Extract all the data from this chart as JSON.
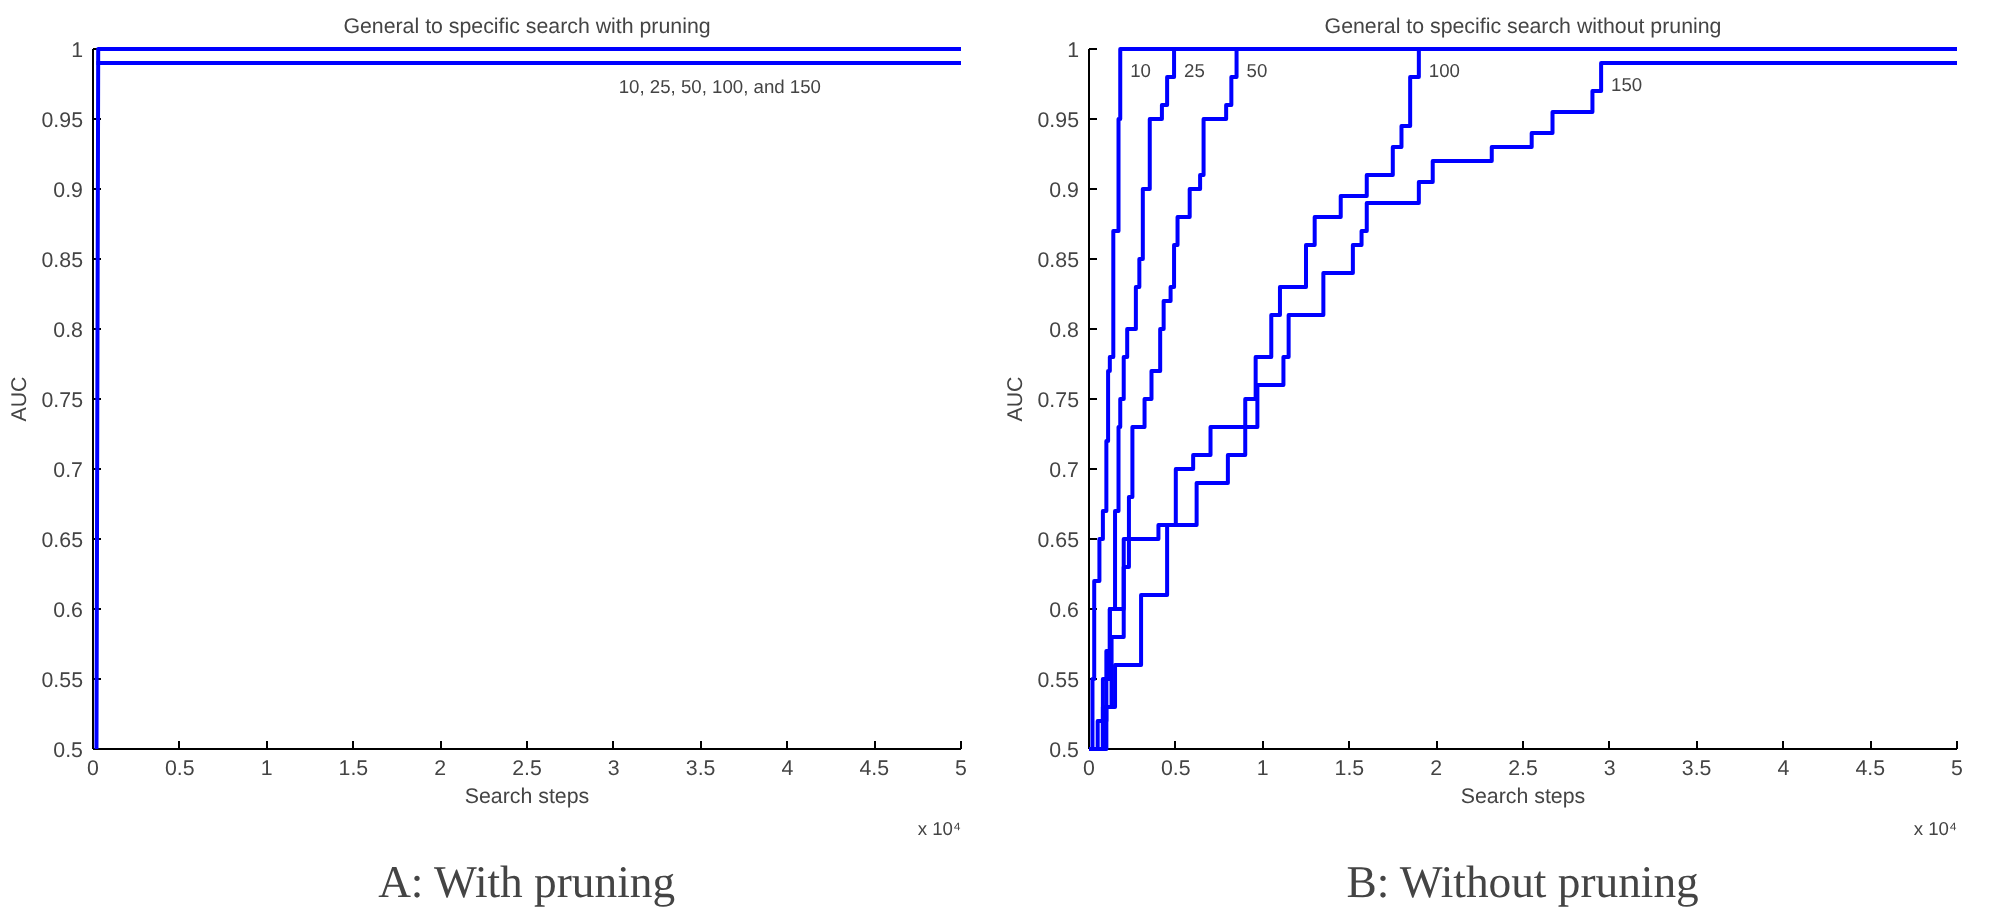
{
  "chart_data": [
    {
      "type": "step",
      "title": "General to specific search with pruning",
      "xlabel": "Search steps",
      "ylabel": "AUC",
      "xlim": [
        0,
        5
      ],
      "ylim": [
        0.5,
        1
      ],
      "xticks": [
        0,
        0.5,
        1,
        1.5,
        2,
        2.5,
        3,
        3.5,
        4,
        4.5,
        5
      ],
      "yticks": [
        0.5,
        0.55,
        0.6,
        0.65,
        0.7,
        0.75,
        0.8,
        0.85,
        0.9,
        0.95,
        1
      ],
      "grid": false,
      "legend": false,
      "line_style": "solid",
      "marker": "none",
      "series": [
        {
          "color": "#0000ff",
          "x": [
            0.02,
            5
          ],
          "values": [
            0.99,
            0.99
          ]
        },
        {
          "type": "line",
          "color": "#0000ff",
          "x": [
            0.02,
            0.03,
            5
          ],
          "values": [
            0.5,
            1.0,
            1.0
          ]
        }
      ],
      "annotations": [
        "10, 25, 50, 100, and 150",
        "x 10⁴",
        "A: With pruning"
      ]
    },
    {
      "type": "step",
      "title": "General to specific search without pruning",
      "xlabel": "Search steps",
      "ylabel": "AUC",
      "xlim": [
        0,
        5
      ],
      "ylim": [
        0.5,
        1
      ],
      "xticks": [
        0,
        0.5,
        1,
        1.5,
        2,
        2.5,
        3,
        3.5,
        4,
        4.5,
        5
      ],
      "yticks": [
        0.5,
        0.55,
        0.6,
        0.65,
        0.7,
        0.75,
        0.8,
        0.85,
        0.9,
        0.95,
        1
      ],
      "grid": false,
      "legend": false,
      "line_style": "solid",
      "marker": "none",
      "series": [
        {
          "name": "10",
          "color": "#0000ff",
          "x": [
            0,
            0.02,
            0.03,
            0.06,
            0.08,
            0.1,
            0.11,
            0.12,
            0.14,
            0.17,
            0.18,
            5
          ],
          "values": [
            0.5,
            0.55,
            0.62,
            0.65,
            0.67,
            0.72,
            0.77,
            0.78,
            0.87,
            0.95,
            1.0,
            1.0
          ]
        },
        {
          "name": "25",
          "color": "#0000ff",
          "x": [
            0,
            0.05,
            0.1,
            0.12,
            0.15,
            0.17,
            0.18,
            0.2,
            0.22,
            0.27,
            0.29,
            0.31,
            0.35,
            0.42,
            0.45,
            0.49,
            5
          ],
          "values": [
            0.5,
            0.52,
            0.57,
            0.6,
            0.67,
            0.73,
            0.75,
            0.78,
            0.8,
            0.83,
            0.85,
            0.9,
            0.95,
            0.96,
            0.98,
            1.0,
            1.0
          ]
        },
        {
          "name": "50",
          "color": "#0000ff",
          "x": [
            0,
            0.1,
            0.13,
            0.2,
            0.23,
            0.25,
            0.32,
            0.36,
            0.41,
            0.43,
            0.47,
            0.49,
            0.51,
            0.58,
            0.64,
            0.66,
            0.79,
            0.82,
            0.85,
            5
          ],
          "values": [
            0.5,
            0.53,
            0.58,
            0.63,
            0.68,
            0.73,
            0.75,
            0.77,
            0.8,
            0.82,
            0.83,
            0.86,
            0.88,
            0.9,
            0.91,
            0.95,
            0.96,
            0.98,
            1.0,
            1.0
          ]
        },
        {
          "name": "100",
          "color": "#0000ff",
          "x": [
            0,
            0.08,
            0.12,
            0.2,
            0.4,
            0.5,
            0.6,
            0.7,
            0.9,
            0.96,
            1.05,
            1.1,
            1.25,
            1.3,
            1.45,
            1.6,
            1.75,
            1.8,
            1.85,
            1.9,
            5
          ],
          "values": [
            0.5,
            0.55,
            0.6,
            0.65,
            0.66,
            0.7,
            0.71,
            0.73,
            0.75,
            0.78,
            0.81,
            0.83,
            0.86,
            0.88,
            0.895,
            0.91,
            0.93,
            0.945,
            0.98,
            1.0,
            1.0
          ]
        },
        {
          "name": "150",
          "color": "#0000ff",
          "x": [
            0,
            0.08,
            0.15,
            0.3,
            0.45,
            0.62,
            0.8,
            0.9,
            0.97,
            1.12,
            1.15,
            1.35,
            1.52,
            1.57,
            1.6,
            1.9,
            1.98,
            2.32,
            2.55,
            2.67,
            2.9,
            2.95,
            5
          ],
          "values": [
            0.5,
            0.53,
            0.56,
            0.61,
            0.66,
            0.69,
            0.71,
            0.73,
            0.76,
            0.78,
            0.81,
            0.84,
            0.86,
            0.87,
            0.89,
            0.905,
            0.92,
            0.93,
            0.94,
            0.955,
            0.97,
            0.99,
            0.99
          ]
        }
      ],
      "annotations": [
        "x 10⁴",
        "B: Without pruning"
      ]
    }
  ]
}
